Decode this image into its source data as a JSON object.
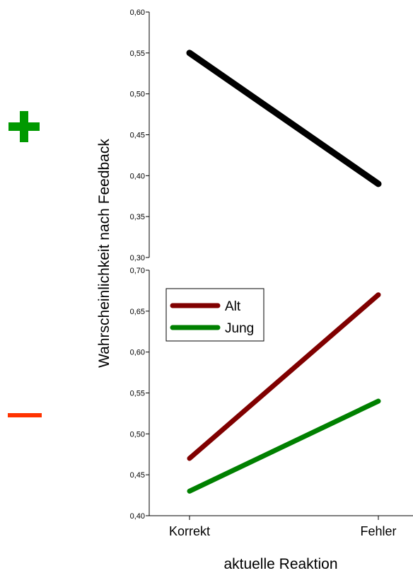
{
  "symbols": {
    "plus": {
      "name": "plus-icon",
      "color": "#009900"
    },
    "minus": {
      "name": "minus-icon",
      "color": "#ff3300"
    }
  },
  "chart_data": {
    "type": "line",
    "categories": [
      "Korrekt",
      "Fehler"
    ],
    "xlabel": "aktuelle Reaktion",
    "ylabel": "Wahrscheinlichkeit nach Feedback",
    "panels": [
      {
        "id": "positive-feedback",
        "ylim": [
          0.3,
          0.6
        ],
        "yticks": [
          "0,30",
          "0,35",
          "0,40",
          "0,45",
          "0,50",
          "0,55",
          "0,60"
        ],
        "series": [
          {
            "values": [
              0.55,
              0.39
            ],
            "color": "#000000"
          }
        ]
      },
      {
        "id": "negative-feedback",
        "ylim": [
          0.4,
          0.7
        ],
        "yticks": [
          "0,40",
          "0,45",
          "0,50",
          "0,55",
          "0,60",
          "0,65",
          "0,70"
        ],
        "legend": "top-left",
        "series": [
          {
            "name": "Alt",
            "values": [
              0.47,
              0.67
            ],
            "color": "#800000"
          },
          {
            "name": "Jung",
            "values": [
              0.43,
              0.54
            ],
            "color": "#008000"
          }
        ]
      }
    ]
  }
}
